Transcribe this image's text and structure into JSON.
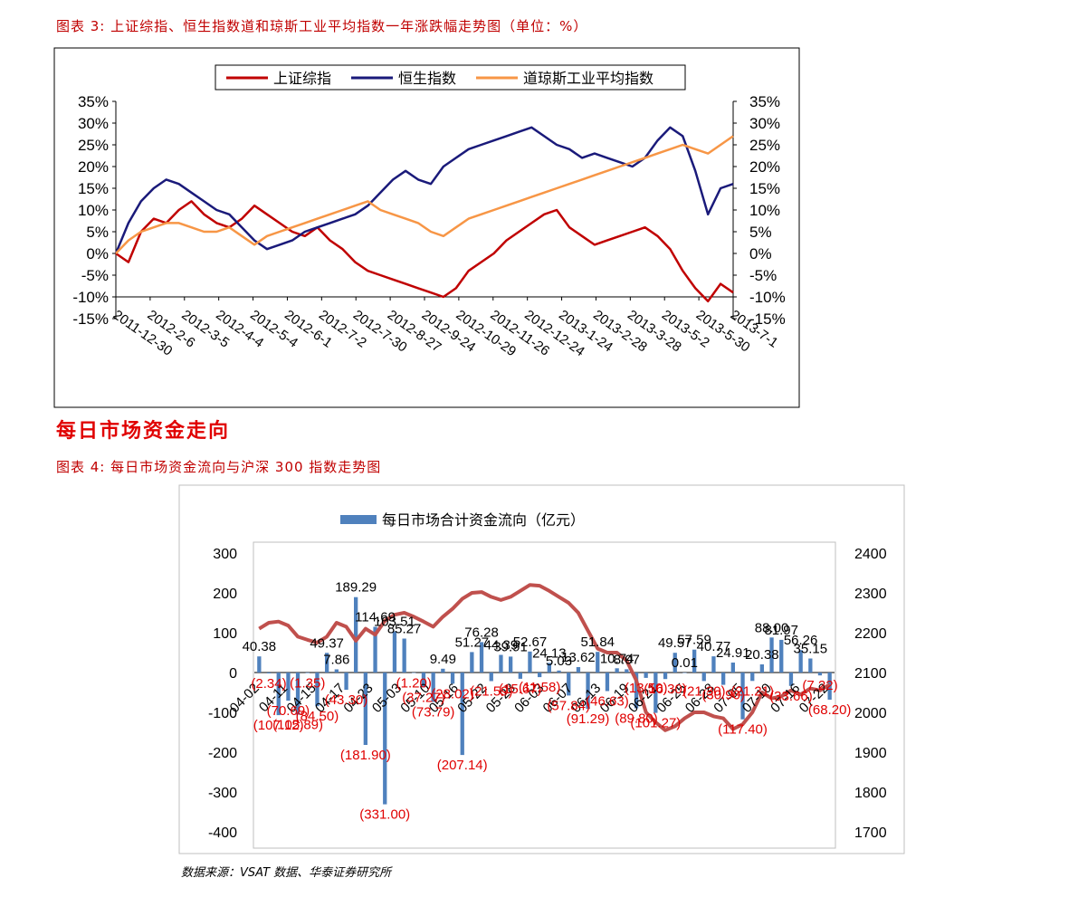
{
  "page": {
    "caption1": "图表 3:  上证综指、恒生指数道和琼斯工业平均指数一年涨跌幅走势图（单位：%）",
    "section_heading": "每日市场资金走向",
    "caption2": "图表 4:  每日市场资金流向与沪深 300 指数走势图",
    "source": "数据来源：VSAT 数据、华泰证券研究所"
  },
  "chart_data": [
    {
      "type": "line",
      "title": "",
      "legend_position": "top-center",
      "grid": false,
      "ylim": [
        -15,
        35
      ],
      "y_ticks": [
        "35%",
        "30%",
        "25%",
        "20%",
        "15%",
        "10%",
        "5%",
        "0%",
        "-5%",
        "-10%",
        "-15%"
      ],
      "x_labels": [
        "2011-12-30",
        "2012-2-6",
        "2012-3-5",
        "2012-4-4",
        "2012-5-4",
        "2012-6-1",
        "2012-7-2",
        "2012-7-30",
        "2012-8-27",
        "2012-9-24",
        "2012-10-29",
        "2012-11-26",
        "2012-12-24",
        "2013-1-24",
        "2013-2-28",
        "2013-3-28",
        "2013-5-2",
        "2013-5-30",
        "2013-7-1"
      ],
      "series": [
        {
          "name": "上证综指",
          "color": "#c00000",
          "values": [
            0,
            -2,
            5,
            8,
            7,
            10,
            12,
            9,
            7,
            6,
            8,
            11,
            9,
            7,
            5,
            4,
            6,
            3,
            1,
            -2,
            -4,
            -5,
            -6,
            -7,
            -8,
            -9,
            -10,
            -8,
            -4,
            -2,
            0,
            3,
            5,
            7,
            9,
            10,
            6,
            4,
            2,
            3,
            4,
            5,
            6,
            4,
            1,
            -4,
            -8,
            -11,
            -7,
            -9
          ]
        },
        {
          "name": "恒生指数",
          "color": "#1a1a7a",
          "values": [
            0,
            7,
            12,
            15,
            17,
            16,
            14,
            12,
            10,
            9,
            6,
            3,
            1,
            2,
            3,
            5,
            6,
            7,
            8,
            9,
            11,
            14,
            17,
            19,
            17,
            16,
            20,
            22,
            24,
            25,
            26,
            27,
            28,
            29,
            27,
            25,
            24,
            22,
            23,
            22,
            21,
            20,
            22,
            26,
            29,
            27,
            19,
            9,
            15,
            16
          ]
        },
        {
          "name": "道琼斯工业平均指数",
          "color": "#f79646",
          "values": [
            0,
            3,
            5,
            6,
            7,
            7,
            6,
            5,
            5,
            6,
            4,
            2,
            4,
            5,
            6,
            7,
            8,
            9,
            10,
            11,
            12,
            10,
            9,
            8,
            7,
            5,
            4,
            6,
            8,
            9,
            10,
            11,
            12,
            13,
            14,
            15,
            16,
            17,
            18,
            19,
            20,
            21,
            22,
            23,
            24,
            25,
            24,
            23,
            25,
            27
          ]
        }
      ]
    },
    {
      "type": "bar",
      "title": "",
      "legend_position": "top-center",
      "grid": false,
      "ylim": [
        -400,
        300
      ],
      "y2lim": [
        1700,
        2400
      ],
      "y_ticks": [
        "300",
        "200",
        "100",
        "0",
        "-100",
        "-200",
        "-300",
        "-400"
      ],
      "y2_ticks": [
        "2400",
        "2300",
        "2200",
        "2100",
        "2000",
        "1900",
        "1800",
        "1700"
      ],
      "x_labels": [
        "04-02",
        "04-11",
        "04-15",
        "04-17",
        "04-23",
        "05-03",
        "05-10",
        "05-16",
        "05-22",
        "05-28",
        "06-03",
        "06-07",
        "06-13",
        "06-19",
        "06-21",
        "06-25",
        "06-28",
        "07-05",
        "07-10",
        "07-16",
        "07-22"
      ],
      "series": [
        {
          "name": "每日市场合计资金流向（亿元）",
          "color": "#4f81bd",
          "values": [
            40.38,
            -2.34,
            -107.12,
            -70.69,
            -105.89,
            -1.35,
            -84.5,
            49.37,
            7.86,
            -43.3,
            189.29,
            -181.9,
            114.69,
            -331.0,
            103.51,
            85.27,
            -1.2,
            -37.27,
            -73.79,
            9.49,
            -28.02,
            -207.14,
            51.27,
            76.28,
            -21.59,
            44.39,
            39.91,
            -15.67,
            52.67,
            -11.58,
            24.13,
            5.03,
            -57.84,
            13.62,
            -91.29,
            51.84,
            -46.63,
            10.74,
            8.07,
            -89.8,
            -13.5,
            -101.27,
            -16.3,
            49.57,
            0.01,
            57.59,
            -21.3,
            40.77,
            -30.9,
            24.91,
            -117.4,
            -21.21,
            20.38,
            88.0,
            81.97,
            -33.66,
            56.26,
            35.15,
            -7.22,
            -68.2
          ]
        },
        {
          "name": "沪深300",
          "color": "#c0504d",
          "axis": "y2",
          "values": [
            2210,
            2225,
            2228,
            2218,
            2190,
            2182,
            2175,
            2190,
            2225,
            2215,
            2180,
            2210,
            2195,
            2230,
            2245,
            2250,
            2240,
            2228,
            2215,
            2240,
            2260,
            2285,
            2300,
            2302,
            2290,
            2282,
            2290,
            2305,
            2320,
            2318,
            2305,
            2290,
            2275,
            2250,
            2205,
            2160,
            2150,
            2150,
            2130,
            2080,
            2000,
            1975,
            1955,
            1965,
            1985,
            2000,
            2000,
            1990,
            1985,
            1958,
            1970,
            2000,
            2050,
            2035,
            2040,
            2055,
            2045,
            2060,
            2055,
            2070
          ]
        }
      ],
      "data_labels": [
        {
          "i": 0,
          "text": "40.38",
          "color": "black"
        },
        {
          "i": 1,
          "text": "(2.34)",
          "color": "red"
        },
        {
          "i": 2,
          "text": "(107.12)",
          "color": "red"
        },
        {
          "i": 3,
          "text": "(70.69)",
          "color": "red"
        },
        {
          "i": 4,
          "text": "(105.89)",
          "color": "red"
        },
        {
          "i": 5,
          "text": "(1.35)",
          "color": "red"
        },
        {
          "i": 6,
          "text": "(84.50)",
          "color": "red"
        },
        {
          "i": 7,
          "text": "49.37",
          "color": "black"
        },
        {
          "i": 8,
          "text": "7.86",
          "color": "black"
        },
        {
          "i": 9,
          "text": "(43.30)",
          "color": "red"
        },
        {
          "i": 10,
          "text": "189.29",
          "color": "black"
        },
        {
          "i": 11,
          "text": "(181.90)",
          "color": "red"
        },
        {
          "i": 12,
          "text": "114.69",
          "color": "black"
        },
        {
          "i": 13,
          "text": "(331.00)",
          "color": "red"
        },
        {
          "i": 14,
          "text": "103.51",
          "color": "black"
        },
        {
          "i": 15,
          "text": "85.27",
          "color": "black"
        },
        {
          "i": 16,
          "text": "(1.20)",
          "color": "red"
        },
        {
          "i": 17,
          "text": "(37.27)",
          "color": "red"
        },
        {
          "i": 18,
          "text": "(73.79)",
          "color": "red"
        },
        {
          "i": 19,
          "text": "9.49",
          "color": "black"
        },
        {
          "i": 20,
          "text": "(28.02)",
          "color": "red"
        },
        {
          "i": 21,
          "text": "(207.14)",
          "color": "red"
        },
        {
          "i": 22,
          "text": "51.27",
          "color": "black"
        },
        {
          "i": 23,
          "text": "76.28",
          "color": "black"
        },
        {
          "i": 24,
          "text": "(21.59)",
          "color": "red"
        },
        {
          "i": 25,
          "text": "44.39",
          "color": "black"
        },
        {
          "i": 26,
          "text": "39.91",
          "color": "black"
        },
        {
          "i": 27,
          "text": "(15.67)",
          "color": "red"
        },
        {
          "i": 28,
          "text": "52.67",
          "color": "black"
        },
        {
          "i": 29,
          "text": "(11.58)",
          "color": "red"
        },
        {
          "i": 30,
          "text": "24.13",
          "color": "black"
        },
        {
          "i": 31,
          "text": "5.03",
          "color": "black"
        },
        {
          "i": 32,
          "text": "(57.84)",
          "color": "red"
        },
        {
          "i": 33,
          "text": "13.62",
          "color": "black"
        },
        {
          "i": 34,
          "text": "(91.29)",
          "color": "red"
        },
        {
          "i": 35,
          "text": "51.84",
          "color": "black"
        },
        {
          "i": 36,
          "text": "(46.63)",
          "color": "red"
        },
        {
          "i": 37,
          "text": "10.74",
          "color": "black"
        },
        {
          "i": 38,
          "text": "8.07",
          "color": "black"
        },
        {
          "i": 39,
          "text": "(89.80)",
          "color": "red"
        },
        {
          "i": 40,
          "text": "(13.50)",
          "color": "red"
        },
        {
          "i": 41,
          "text": "(101.27)",
          "color": "red"
        },
        {
          "i": 42,
          "text": "(16.30)",
          "color": "red"
        },
        {
          "i": 43,
          "text": "49.57",
          "color": "black"
        },
        {
          "i": 44,
          "text": "0.01",
          "color": "black"
        },
        {
          "i": 45,
          "text": "57.59",
          "color": "black"
        },
        {
          "i": 46,
          "text": "(21.30)",
          "color": "red"
        },
        {
          "i": 47,
          "text": "40.77",
          "color": "black"
        },
        {
          "i": 48,
          "text": "(30.90)",
          "color": "red"
        },
        {
          "i": 49,
          "text": "24.91",
          "color": "black"
        },
        {
          "i": 50,
          "text": "(117.40)",
          "color": "red"
        },
        {
          "i": 51,
          "text": "(21.21)",
          "color": "red"
        },
        {
          "i": 52,
          "text": "20.38",
          "color": "black"
        },
        {
          "i": 53,
          "text": "88.00",
          "color": "black"
        },
        {
          "i": 54,
          "text": "81.97",
          "color": "black"
        },
        {
          "i": 55,
          "text": "(33.66)",
          "color": "red"
        },
        {
          "i": 56,
          "text": "56.26",
          "color": "black"
        },
        {
          "i": 57,
          "text": "35.15",
          "color": "black"
        },
        {
          "i": 58,
          "text": "(7.22)",
          "color": "red"
        },
        {
          "i": 59,
          "text": "(68.20)",
          "color": "red"
        }
      ]
    }
  ]
}
